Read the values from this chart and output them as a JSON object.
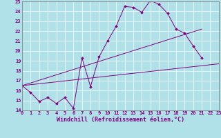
{
  "xlabel": "Windchill (Refroidissement éolien,°C)",
  "bg_color": "#b0e0e8",
  "line_color": "#800080",
  "grid_color": "#c0d8dc",
  "ylim": [
    14,
    25
  ],
  "xlim": [
    0,
    23
  ],
  "yticks": [
    14,
    15,
    16,
    17,
    18,
    19,
    20,
    21,
    22,
    23,
    24,
    25
  ],
  "xticks": [
    0,
    1,
    2,
    3,
    4,
    5,
    6,
    7,
    8,
    9,
    10,
    11,
    12,
    13,
    14,
    15,
    16,
    17,
    18,
    19,
    20,
    21,
    22,
    23
  ],
  "series1_x": [
    0,
    1,
    2,
    3,
    4,
    5,
    6,
    7,
    8,
    9,
    10,
    11,
    12,
    13,
    14,
    15,
    16,
    17,
    18,
    19,
    20,
    21
  ],
  "series1_y": [
    16.5,
    15.8,
    14.9,
    15.3,
    14.7,
    15.3,
    14.2,
    19.3,
    16.4,
    19.4,
    21.0,
    22.5,
    24.5,
    24.4,
    23.9,
    25.1,
    24.7,
    23.8,
    22.2,
    21.8,
    20.5,
    19.3
  ],
  "series2_x": [
    0,
    23
  ],
  "series2_y": [
    16.5,
    18.7
  ],
  "series3_x": [
    0,
    21
  ],
  "series3_y": [
    16.5,
    22.2
  ],
  "tick_fontsize": 5.0,
  "xlabel_fontsize": 6.0
}
